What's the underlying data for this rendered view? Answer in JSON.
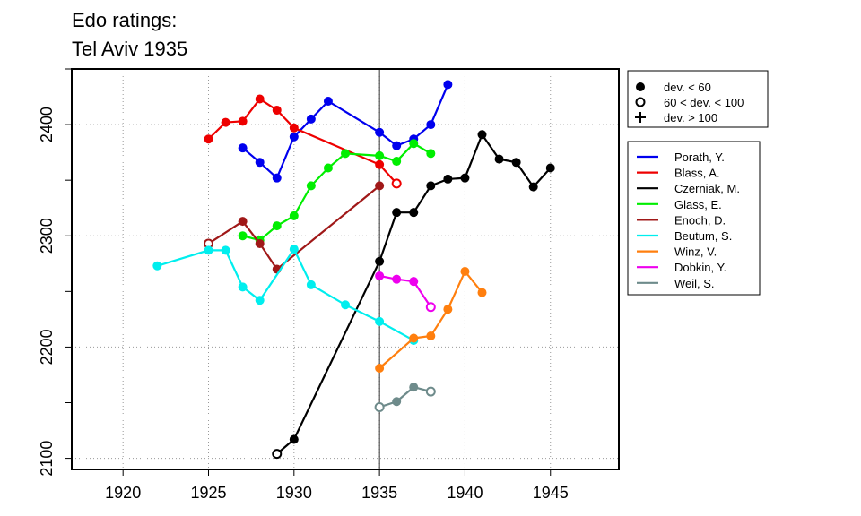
{
  "chart_data": {
    "type": "line",
    "title_lines": [
      "Edo ratings:",
      "Tel Aviv 1935"
    ],
    "xlabel": "",
    "ylabel": "",
    "xlim": [
      1917,
      1949
    ],
    "ylim": [
      2090,
      2450
    ],
    "x_ticks": [
      1920,
      1925,
      1930,
      1935,
      1940,
      1945
    ],
    "y_ticks": [
      2100,
      2200,
      2300,
      2400
    ],
    "grid": true,
    "vertical_reference_x": 1935,
    "legend_markers": [
      {
        "symbol": "filled",
        "label": "dev. < 60"
      },
      {
        "symbol": "open",
        "label": "60 < dev. < 100"
      },
      {
        "symbol": "plus",
        "label": "dev. > 100"
      }
    ],
    "series": [
      {
        "name": "Porath, Y.",
        "color": "#0000ee",
        "points": [
          [
            1927,
            2379,
            "filled"
          ],
          [
            1928,
            2366,
            "filled"
          ],
          [
            1929,
            2352,
            "filled"
          ],
          [
            1930,
            2389,
            "filled"
          ],
          [
            1931,
            2405,
            "filled"
          ],
          [
            1932,
            2421,
            "filled"
          ],
          [
            1935,
            2393,
            "filled"
          ],
          [
            1936,
            2381,
            "filled"
          ],
          [
            1937,
            2387,
            "filled"
          ],
          [
            1938,
            2400,
            "filled"
          ],
          [
            1939,
            2436,
            "filled"
          ]
        ]
      },
      {
        "name": "Blass, A.",
        "color": "#ee0000",
        "points": [
          [
            1925,
            2387,
            "filled"
          ],
          [
            1926,
            2402,
            "filled"
          ],
          [
            1927,
            2403,
            "filled"
          ],
          [
            1928,
            2423,
            "filled"
          ],
          [
            1929,
            2413,
            "filled"
          ],
          [
            1930,
            2397,
            "filled"
          ],
          [
            1935,
            2364,
            "filled"
          ],
          [
            1936,
            2347,
            "open"
          ]
        ]
      },
      {
        "name": "Czerniak, M.",
        "color": "#000000",
        "points": [
          [
            1929,
            2104,
            "open"
          ],
          [
            1930,
            2117,
            "filled"
          ],
          [
            1935,
            2277,
            "filled"
          ],
          [
            1936,
            2321,
            "filled"
          ],
          [
            1937,
            2321,
            "filled"
          ],
          [
            1938,
            2345,
            "filled"
          ],
          [
            1939,
            2351,
            "filled"
          ],
          [
            1940,
            2352,
            "filled"
          ],
          [
            1941,
            2391,
            "filled"
          ],
          [
            1942,
            2369,
            "filled"
          ],
          [
            1943,
            2366,
            "filled"
          ],
          [
            1944,
            2344,
            "filled"
          ],
          [
            1945,
            2361,
            "filled"
          ]
        ]
      },
      {
        "name": "Glass, E.",
        "color": "#00ee00",
        "points": [
          [
            1927,
            2300,
            "filled"
          ],
          [
            1928,
            2296,
            "filled"
          ],
          [
            1929,
            2309,
            "filled"
          ],
          [
            1930,
            2318,
            "filled"
          ],
          [
            1931,
            2345,
            "filled"
          ],
          [
            1932,
            2361,
            "filled"
          ],
          [
            1933,
            2374,
            "filled"
          ],
          [
            1935,
            2372,
            "filled"
          ],
          [
            1936,
            2367,
            "filled"
          ],
          [
            1937,
            2383,
            "filled"
          ],
          [
            1938,
            2374,
            "filled"
          ]
        ]
      },
      {
        "name": "Enoch, D.",
        "color": "#a01818",
        "points": [
          [
            1925,
            2293,
            "open"
          ],
          [
            1927,
            2313,
            "filled"
          ],
          [
            1928,
            2293,
            "filled"
          ],
          [
            1929,
            2270,
            "filled"
          ],
          [
            1935,
            2345,
            "filled"
          ]
        ]
      },
      {
        "name": "Beutum, S.",
        "color": "#00eeee",
        "points": [
          [
            1922,
            2273,
            "filled"
          ],
          [
            1925,
            2287,
            "filled"
          ],
          [
            1926,
            2287,
            "filled"
          ],
          [
            1927,
            2254,
            "filled"
          ],
          [
            1928,
            2242,
            "filled"
          ],
          [
            1930,
            2288,
            "filled"
          ],
          [
            1931,
            2256,
            "filled"
          ],
          [
            1933,
            2238,
            "filled"
          ],
          [
            1935,
            2223,
            "filled"
          ],
          [
            1937,
            2206,
            "filled"
          ]
        ]
      },
      {
        "name": "Winz, V.",
        "color": "#ff7f0e",
        "points": [
          [
            1935,
            2181,
            "filled"
          ],
          [
            1937,
            2208,
            "filled"
          ],
          [
            1938,
            2210,
            "filled"
          ],
          [
            1939,
            2234,
            "filled"
          ],
          [
            1940,
            2268,
            "filled"
          ],
          [
            1941,
            2249,
            "filled"
          ]
        ]
      },
      {
        "name": "Dobkin, Y.",
        "color": "#ee00ee",
        "points": [
          [
            1935,
            2264,
            "filled"
          ],
          [
            1936,
            2261,
            "filled"
          ],
          [
            1937,
            2259,
            "filled"
          ],
          [
            1938,
            2236,
            "open"
          ]
        ]
      },
      {
        "name": "Weil, S.",
        "color": "#6e8b8b",
        "points": [
          [
            1935,
            2146,
            "open"
          ],
          [
            1936,
            2151,
            "filled"
          ],
          [
            1937,
            2164,
            "filled"
          ],
          [
            1938,
            2160,
            "open"
          ]
        ]
      }
    ]
  }
}
